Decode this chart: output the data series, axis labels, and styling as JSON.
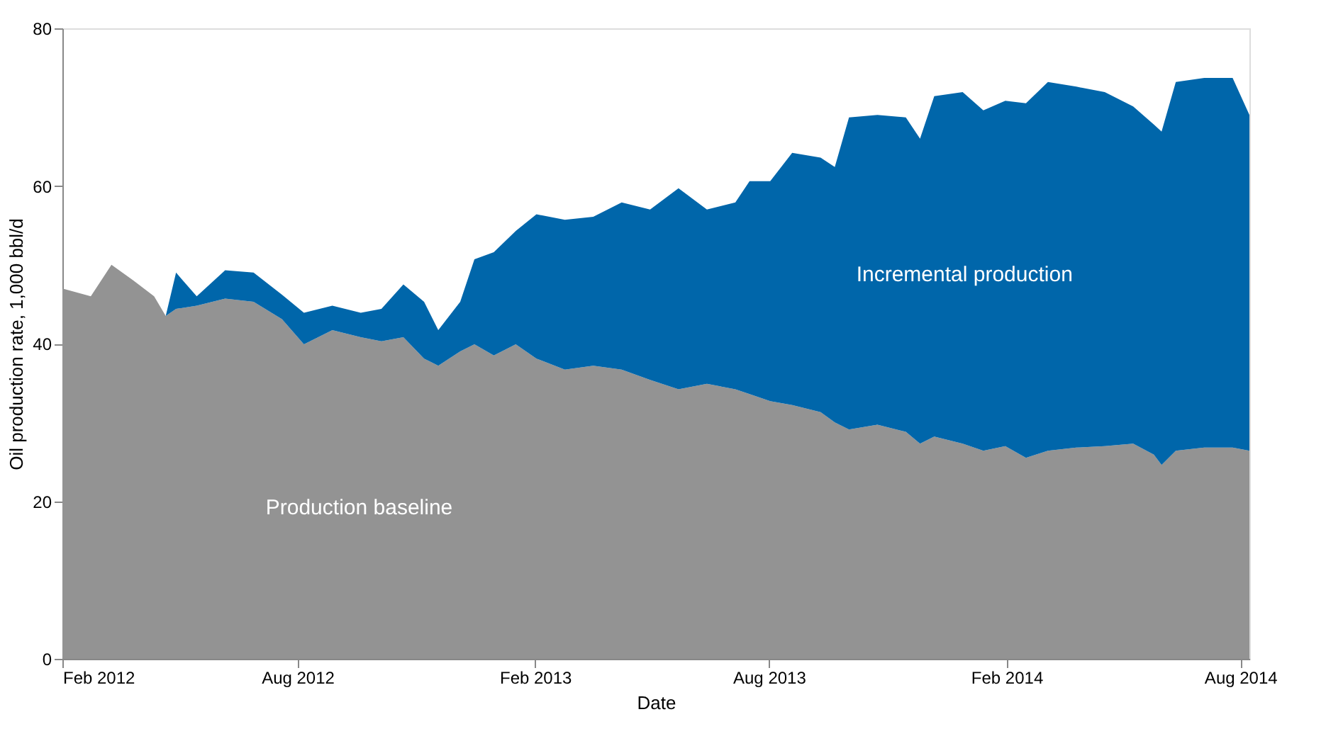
{
  "chart_data": {
    "type": "area",
    "stacked": true,
    "xlabel": "Date",
    "ylabel": "Oil production rate, 1,000 bbl/d",
    "x": [
      "2012-02-01",
      "2012-02-23",
      "2012-03-10",
      "2012-03-27",
      "2012-04-12",
      "2012-04-21",
      "2012-04-29",
      "2012-05-15",
      "2012-06-06",
      "2012-06-28",
      "2012-07-20",
      "2012-08-06",
      "2012-08-28",
      "2012-09-19",
      "2012-10-05",
      "2012-10-22",
      "2012-11-07",
      "2012-11-18",
      "2012-12-05",
      "2012-12-16",
      "2012-12-31",
      "2013-01-17",
      "2013-02-02",
      "2013-02-24",
      "2013-03-18",
      "2013-04-09",
      "2013-05-01",
      "2013-05-23",
      "2013-06-14",
      "2013-07-06",
      "2013-07-17",
      "2013-08-02",
      "2013-08-19",
      "2013-09-10",
      "2013-09-21",
      "2013-10-02",
      "2013-10-24",
      "2013-11-15",
      "2013-11-26",
      "2013-12-07",
      "2013-12-29",
      "2014-01-14",
      "2014-01-31",
      "2014-02-16",
      "2014-03-05",
      "2014-03-27",
      "2014-04-18",
      "2014-05-10",
      "2014-05-26",
      "2014-06-01",
      "2014-06-12",
      "2014-07-04",
      "2014-07-26",
      "2014-08-08"
    ],
    "series": [
      {
        "name": "Production baseline",
        "color": "#939393",
        "values": [
          47,
          46,
          50,
          48,
          46,
          43.5,
          44.4,
          44.8,
          45.7,
          45.3,
          43.1,
          39.9,
          41.7,
          40.8,
          40.3,
          40.8,
          38.1,
          37.2,
          39.0,
          39.9,
          38.5,
          39.9,
          38.1,
          36.7,
          37.2,
          36.7,
          35.4,
          34.2,
          34.9,
          34.2,
          33.6,
          32.7,
          32.2,
          31.3,
          30.0,
          29.1,
          29.7,
          28.8,
          27.3,
          28.2,
          27.3,
          26.4,
          27.0,
          25.5,
          26.4,
          26.8,
          27.0,
          27.3,
          25.9,
          24.6,
          26.4,
          26.8,
          26.8,
          26.4
        ]
      },
      {
        "name": "Incremental production",
        "color": "#0066aa",
        "values": [
          0,
          0,
          0,
          0,
          0,
          0,
          4.6,
          1.2,
          3.6,
          3.7,
          3.1,
          4.0,
          3.1,
          3.1,
          4.1,
          6.7,
          7.2,
          4.5,
          6.3,
          10.8,
          13.1,
          14.4,
          18.3,
          19.0,
          18.9,
          21.2,
          21.6,
          25.5,
          22.1,
          23.7,
          27.0,
          27.9,
          32.0,
          32.3,
          32.4,
          39.6,
          39.3,
          39.9,
          38.7,
          43.2,
          44.6,
          43.2,
          43.8,
          45.0,
          46.8,
          45.8,
          44.9,
          42.8,
          41.9,
          42.3,
          46.8,
          46.9,
          46.9,
          42.6
        ]
      }
    ],
    "xlim": [
      "2012-02-01",
      "2014-08-08"
    ],
    "xticks": [
      {
        "value": "2012-02-01",
        "label": "Feb 2012"
      },
      {
        "value": "2012-08-01",
        "label": "Aug 2012"
      },
      {
        "value": "2013-02-01",
        "label": "Feb 2013"
      },
      {
        "value": "2013-08-01",
        "label": "Aug 2013"
      },
      {
        "value": "2014-02-01",
        "label": "Feb 2014"
      },
      {
        "value": "2014-08-01",
        "label": "Aug 2014"
      }
    ],
    "ylim": [
      0,
      80
    ],
    "yticks": [
      0,
      20,
      40,
      60,
      80
    ],
    "grid": false,
    "legend": false
  }
}
